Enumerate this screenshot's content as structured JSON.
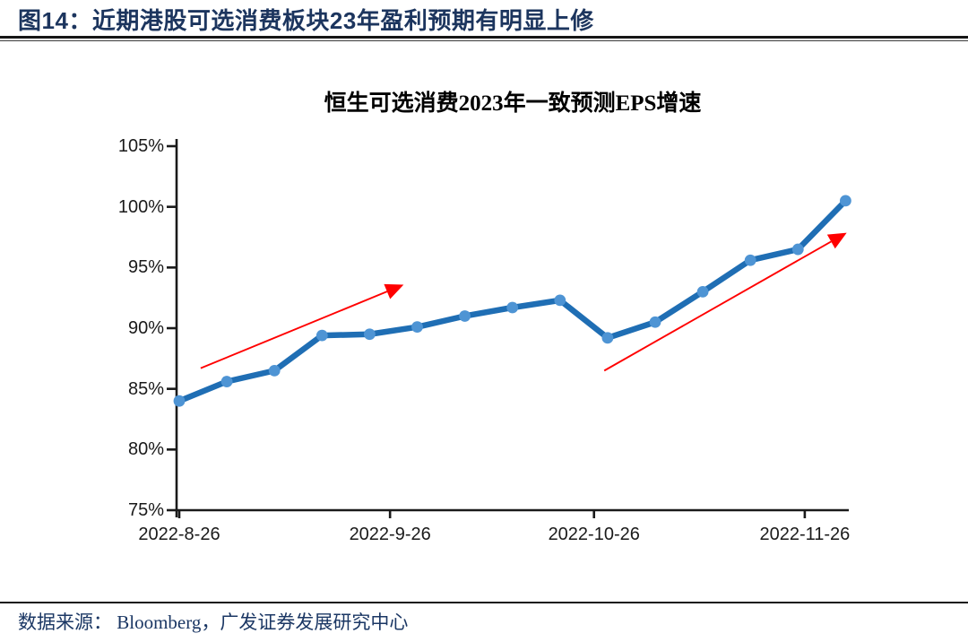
{
  "header": {
    "title": "图14：近期港股可选消费板块23年盈利预期有明显上修"
  },
  "chart": {
    "title": "恒生可选消费2023年一致预测EPS增速"
  },
  "footer": {
    "source": "数据来源： Bloomberg，广发证券发展研究中心"
  },
  "chart_data": {
    "type": "line",
    "title": "恒生可选消费2023年一致预测EPS增速",
    "x": [
      "2022-8-26",
      "2022-9-2",
      "2022-9-9",
      "2022-9-16",
      "2022-9-23",
      "2022-9-30",
      "2022-10-7",
      "2022-10-14",
      "2022-10-21",
      "2022-10-28",
      "2022-11-4",
      "2022-11-11",
      "2022-11-18",
      "2022-11-25",
      "2022-12-2"
    ],
    "values": [
      84.0,
      85.6,
      86.5,
      89.4,
      89.5,
      90.1,
      91.0,
      91.7,
      92.3,
      89.2,
      90.5,
      93.0,
      95.6,
      96.5,
      100.5
    ],
    "unit": "%",
    "ylim": [
      75,
      105
    ],
    "ytick_step": 5,
    "ytick_labels": [
      "105%",
      "100%",
      "95%",
      "90%",
      "85%",
      "80%",
      "75%"
    ],
    "xtick_labels": [
      "2022-8-26",
      "2022-9-26",
      "2022-10-26",
      "2022-11-26"
    ],
    "xtick_day_offsets": [
      0,
      31,
      61,
      92
    ],
    "grid": false,
    "legend": "none",
    "xlabel": "",
    "ylabel": "",
    "series_color": "#1F6EB4",
    "marker_color": "#4E94D4",
    "axis_color": "#1a1a1a",
    "annotations": [
      {
        "type": "trend-arrow",
        "color": "#FF0000",
        "from": {
          "i": 0.45,
          "v": 86.7
        },
        "to": {
          "i": 4.54,
          "v": 93.3
        }
      },
      {
        "type": "trend-arrow",
        "color": "#FF0000",
        "from": {
          "i": 8.93,
          "v": 86.5
        },
        "to": {
          "i": 13.86,
          "v": 97.5
        }
      }
    ]
  }
}
